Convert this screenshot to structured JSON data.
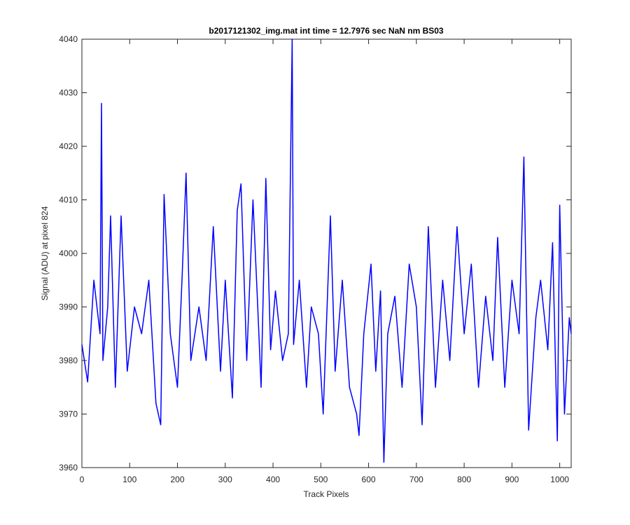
{
  "chart_data": {
    "type": "line",
    "title": "b2017121302_img.mat int time = 12.7976 sec  NaN nm BS03",
    "xlabel": "Track Pixels",
    "ylabel": "Signal (ADU) at pixel 824",
    "xlim": [
      0,
      1024
    ],
    "ylim": [
      3960,
      4040
    ],
    "xticks": [
      0,
      100,
      200,
      300,
      400,
      500,
      600,
      700,
      800,
      900,
      1000
    ],
    "yticks": [
      3960,
      3970,
      3980,
      3990,
      4000,
      4010,
      4020,
      4030,
      4040
    ],
    "grid": false,
    "legend": "none",
    "series": [
      {
        "color": "#0000ff",
        "x": [
          0,
          12,
          25,
          38,
          41,
          44,
          54,
          60,
          70,
          82,
          95,
          110,
          125,
          140,
          155,
          165,
          172,
          185,
          200,
          210,
          218,
          228,
          245,
          260,
          275,
          290,
          300,
          315,
          325,
          333,
          345,
          358,
          368,
          375,
          385,
          395,
          405,
          420,
          432,
          440,
          443,
          455,
          470,
          480,
          495,
          505,
          520,
          530,
          545,
          560,
          575,
          580,
          590,
          605,
          615,
          625,
          632,
          640,
          655,
          670,
          685,
          700,
          712,
          725,
          740,
          755,
          770,
          785,
          800,
          815,
          830,
          845,
          860,
          870,
          885,
          900,
          915,
          925,
          935,
          950,
          960,
          975,
          985,
          995,
          1000,
          1010,
          1020,
          1024
        ],
        "y": [
          3983,
          3976,
          3995,
          3985,
          4028,
          3980,
          3990,
          4007,
          3975,
          4007,
          3978,
          3990,
          3985,
          3995,
          3972,
          3968,
          4011,
          3985,
          3975,
          3996,
          4015,
          3980,
          3990,
          3980,
          4005,
          3978,
          3995,
          3973,
          4008,
          4013,
          3980,
          4010,
          3990,
          3975,
          4014,
          3982,
          3993,
          3980,
          3985,
          4040,
          3983,
          3995,
          3975,
          3990,
          3985,
          3970,
          4007,
          3978,
          3995,
          3975,
          3970,
          3966,
          3985,
          3998,
          3978,
          3993,
          3961,
          3985,
          3992,
          3975,
          3998,
          3990,
          3968,
          4005,
          3975,
          3995,
          3980,
          4005,
          3985,
          3998,
          3975,
          3992,
          3980,
          4003,
          3975,
          3995,
          3985,
          4018,
          3967,
          3988,
          3995,
          3982,
          4002,
          3965,
          4009,
          3970,
          3988,
          3985
        ]
      }
    ]
  }
}
